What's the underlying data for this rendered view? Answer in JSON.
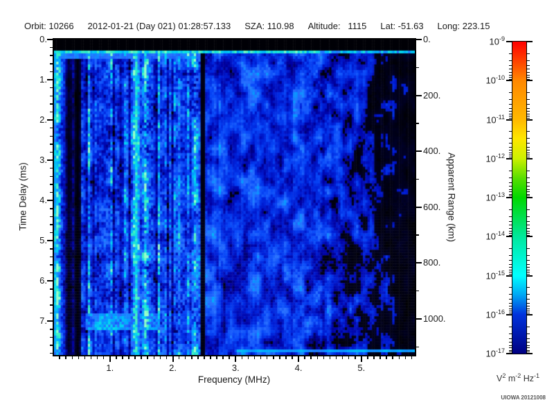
{
  "header": {
    "fields": [
      "Orbit: 10266",
      "2012-01-21 (Day 021) 01:28:57.133",
      "SZA: 110.98",
      "Altitude:   1115",
      "Lat: -51.63",
      "Long: 223.15"
    ]
  },
  "chart_data": {
    "type": "heatmap",
    "title": "",
    "x_axis": {
      "label": "Frequency (MHz)",
      "range": [
        0.11,
        5.85
      ],
      "minor_step": 0.1,
      "ticks": [
        {
          "v": 1,
          "t": "1."
        },
        {
          "v": 2,
          "t": "2."
        },
        {
          "v": 3,
          "t": "3."
        },
        {
          "v": 4,
          "t": "4."
        },
        {
          "v": 5,
          "t": "5."
        }
      ]
    },
    "y_left": {
      "label": "Time Delay (ms)",
      "range": [
        0,
        7.84
      ],
      "minor_step": 0.2,
      "ticks": [
        {
          "v": 0,
          "t": "0."
        },
        {
          "v": 1,
          "t": "1."
        },
        {
          "v": 2,
          "t": "2."
        },
        {
          "v": 3,
          "t": "3."
        },
        {
          "v": 4,
          "t": "4."
        },
        {
          "v": 5,
          "t": "5."
        },
        {
          "v": 6,
          "t": "6."
        },
        {
          "v": 7,
          "t": "7."
        }
      ]
    },
    "y_right": {
      "label": "Apparent Range (km)",
      "range": [
        0,
        1129
      ],
      "minor_step": 100,
      "ticks": [
        {
          "v": 0,
          "t": "0."
        },
        {
          "v": 200,
          "t": "200."
        },
        {
          "v": 400,
          "t": "400."
        },
        {
          "v": 600,
          "t": "600."
        },
        {
          "v": 800,
          "t": "800."
        },
        {
          "v": 1000,
          "t": "1000."
        }
      ]
    },
    "colorbar": {
      "scale": "log",
      "ticks": [
        {
          "base": "10",
          "exp": "-9"
        },
        {
          "base": "10",
          "exp": "-10"
        },
        {
          "base": "10",
          "exp": "-11"
        },
        {
          "base": "10",
          "exp": "-12"
        },
        {
          "base": "10",
          "exp": "-13"
        },
        {
          "base": "10",
          "exp": "-14"
        },
        {
          "base": "10",
          "exp": "-15"
        },
        {
          "base": "10",
          "exp": "-16"
        },
        {
          "base": "10",
          "exp": "-17"
        }
      ],
      "units": [
        {
          "base": "V",
          "exp": "2"
        },
        {
          "base": "m",
          "exp": "-2"
        },
        {
          "base": "Hz",
          "exp": "-1"
        }
      ],
      "gradient_stops": [
        {
          "p": 0,
          "c": "#FF0000"
        },
        {
          "p": 6,
          "c": "#FF4000"
        },
        {
          "p": 12.5,
          "c": "#FF8800"
        },
        {
          "p": 25,
          "c": "#FFB800"
        },
        {
          "p": 31,
          "c": "#FFE600"
        },
        {
          "p": 37.5,
          "c": "#CCF000"
        },
        {
          "p": 44,
          "c": "#55DE00"
        },
        {
          "p": 50,
          "c": "#00D800"
        },
        {
          "p": 62.5,
          "c": "#00E89C"
        },
        {
          "p": 75,
          "c": "#00FFFF"
        },
        {
          "p": 81,
          "c": "#00AAF5"
        },
        {
          "p": 87.5,
          "c": "#0033DD"
        },
        {
          "p": 100,
          "c": "#000082"
        }
      ]
    },
    "spectrogram": {
      "grid": {
        "cols": 160,
        "rows": 114
      },
      "value_colors": [
        [
          0,
          "#000000"
        ],
        [
          0.1,
          "#000030"
        ],
        [
          0.22,
          "#0000A0"
        ],
        [
          0.34,
          "#0020D8"
        ],
        [
          0.46,
          "#0848F8"
        ],
        [
          0.58,
          "#2870FF"
        ],
        [
          0.7,
          "#00A0FF"
        ],
        [
          0.8,
          "#00D8F0"
        ],
        [
          0.9,
          "#38F0C0"
        ],
        [
          1,
          "#98FFC8"
        ]
      ],
      "features": {
        "top_black_band_ms": [
          0,
          0.26
        ],
        "surface_echo_ms": [
          0.26,
          0.35
        ],
        "subsurface_bright_ms": [
          0.35,
          0.46
        ],
        "bright_vertical_line_mhz": 1.42,
        "dark_vertical_band_mhz": [
          2.44,
          2.52
        ],
        "dark_column_region_mhz": [
          0.3,
          0.56
        ],
        "black_columns_mhz": [
          [
            0.315,
            0.345
          ],
          [
            0.47,
            0.52
          ]
        ],
        "left_edge_bright_max_mhz": 0.145,
        "bottom_bright_patch": {
          "ms": [
            6.78,
            7.22
          ],
          "mhz": [
            0.62,
            1.78
          ]
        },
        "bottom_bright_line": {
          "ms": [
            7.69,
            7.79
          ],
          "mhz_from": 3.02
        },
        "noise_fadeout_start_mhz": 4.1
      }
    },
    "annotation": "UIOWA 20121008"
  }
}
